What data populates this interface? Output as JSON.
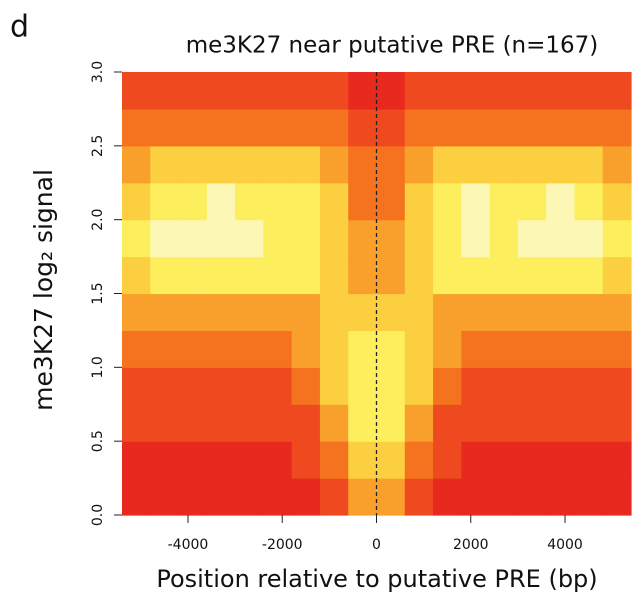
{
  "chart_data": {
    "type": "heatmap",
    "panel_label": "d",
    "title": "me3K27 near putative PRE (n=167)",
    "xlabel": "Position relative to putative PRE (bp)",
    "ylabel": "me3K27 log₂ signal",
    "xlim": [
      -5400,
      5400
    ],
    "ylim": [
      0,
      3
    ],
    "xticks": [
      -4000,
      -2000,
      0,
      2000,
      4000
    ],
    "yticks": [
      {
        "value": 0,
        "label": "0.0"
      },
      0.5,
      {
        "value": 1,
        "label": "1.0"
      },
      1.5,
      {
        "value": 2,
        "label": "2.0"
      },
      2.5,
      {
        "value": 3,
        "label": "3.0"
      }
    ],
    "vline": 0,
    "x_edges": [
      -5400,
      -4800,
      -4200,
      -3600,
      -3000,
      -2400,
      -1800,
      -1200,
      -600,
      0,
      600,
      1200,
      1800,
      2400,
      3000,
      3600,
      4200,
      4800,
      5400
    ],
    "y_edges": [
      0,
      0.25,
      0.5,
      0.75,
      1,
      1.25,
      1.5,
      1.75,
      2,
      2.25,
      2.5,
      2.75,
      3
    ],
    "colors": [
      "#e8291f",
      "#ef4a1f",
      "#f5731f",
      "#f8a02b",
      "#fbcf3f",
      "#fdee5e",
      "#fdf7b6"
    ],
    "z": [
      [
        0,
        0,
        0,
        0,
        0,
        0,
        0,
        1,
        3,
        3,
        1,
        0,
        0,
        0,
        0,
        0,
        0,
        0
      ],
      [
        0,
        0,
        0,
        0,
        0,
        0,
        1,
        2,
        4,
        4,
        2,
        1,
        0,
        0,
        0,
        0,
        0,
        0
      ],
      [
        1,
        1,
        1,
        1,
        1,
        1,
        1,
        3,
        5,
        5,
        3,
        1,
        1,
        1,
        1,
        1,
        1,
        1
      ],
      [
        1,
        1,
        1,
        1,
        1,
        1,
        2,
        4,
        5,
        5,
        4,
        2,
        1,
        1,
        1,
        1,
        1,
        1
      ],
      [
        2,
        2,
        2,
        2,
        2,
        2,
        3,
        4,
        5,
        5,
        4,
        3,
        2,
        2,
        2,
        2,
        2,
        2
      ],
      [
        3,
        3,
        3,
        3,
        3,
        3,
        3,
        4,
        4,
        4,
        4,
        3,
        3,
        3,
        3,
        3,
        3,
        3
      ],
      [
        4,
        5,
        5,
        5,
        5,
        5,
        5,
        4,
        3,
        3,
        4,
        5,
        5,
        5,
        5,
        5,
        5,
        4
      ],
      [
        5,
        6,
        6,
        6,
        6,
        5,
        5,
        4,
        3,
        3,
        4,
        5,
        6,
        5,
        6,
        6,
        6,
        5
      ],
      [
        4,
        5,
        5,
        6,
        5,
        5,
        5,
        4,
        2,
        2,
        4,
        5,
        6,
        5,
        5,
        6,
        5,
        4
      ],
      [
        3,
        4,
        4,
        4,
        4,
        4,
        4,
        3,
        2,
        2,
        3,
        4,
        4,
        4,
        4,
        4,
        4,
        3
      ],
      [
        2,
        2,
        2,
        2,
        2,
        2,
        2,
        2,
        1,
        1,
        2,
        2,
        2,
        2,
        2,
        2,
        2,
        2
      ],
      [
        1,
        1,
        1,
        1,
        1,
        1,
        1,
        1,
        0,
        0,
        1,
        1,
        1,
        1,
        1,
        1,
        1,
        1
      ]
    ]
  }
}
